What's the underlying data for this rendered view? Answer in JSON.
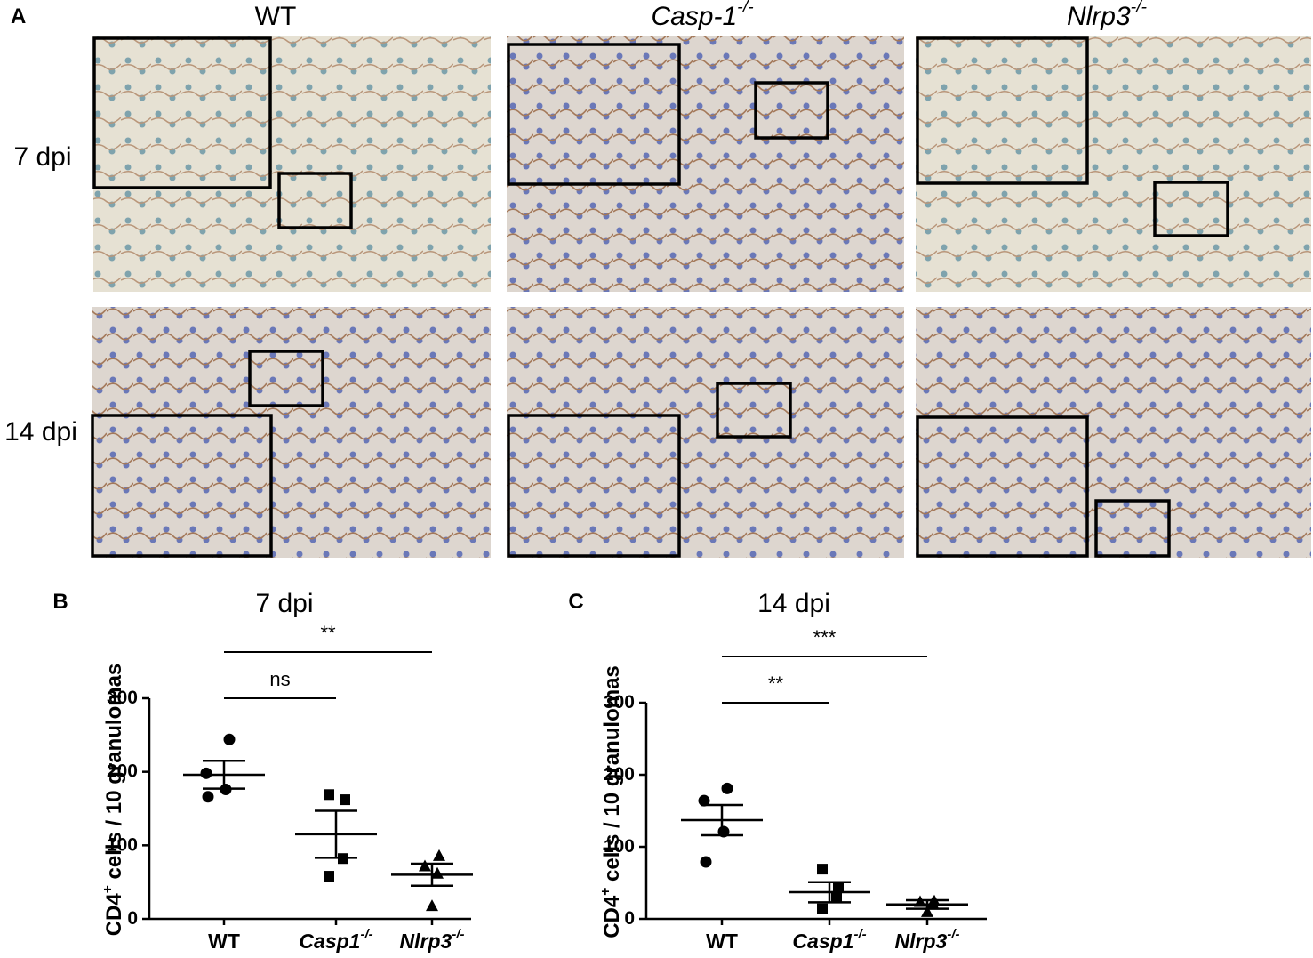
{
  "panel_a": {
    "label": "A",
    "columns": [
      "WT",
      "Casp-1-/-",
      "Nlrp3-/-"
    ],
    "rows": [
      "7 dpi",
      "14 dpi"
    ]
  },
  "chart_data": [
    {
      "type": "dot",
      "panel_label": "B",
      "title": "7 dpi",
      "y_label": "CD4+ cells / 10 granulomas",
      "categories": [
        "WT",
        "Casp1-/-",
        "Nlrp3-/-"
      ],
      "markers": [
        "circle",
        "square",
        "triangle"
      ],
      "points": [
        [
          244,
          198,
          176,
          166
        ],
        [
          169,
          162,
          82,
          58
        ],
        [
          86,
          72,
          62,
          18
        ]
      ],
      "means": [
        196,
        115,
        60
      ],
      "errors": [
        19,
        32,
        15
      ],
      "annotations": [
        "ns",
        "**"
      ],
      "ylim": [
        0,
        300
      ],
      "yticks": [
        0,
        100,
        200,
        300
      ],
      "color": "#000000"
    },
    {
      "type": "dot",
      "panel_label": "C",
      "title": "14 dpi",
      "y_label": "CD4+ cells / 10 granulomas",
      "categories": [
        "WT",
        "Casp1-/-",
        "Nlrp3-/-"
      ],
      "markers": [
        "circle",
        "square",
        "triangle"
      ],
      "points": [
        [
          181,
          164,
          121,
          79
        ],
        [
          69,
          45,
          31,
          14
        ],
        [
          25,
          24,
          22,
          10
        ]
      ],
      "means": [
        137,
        37,
        20
      ],
      "errors": [
        21,
        14,
        6
      ],
      "annotations": [
        "**",
        "***"
      ],
      "ylim": [
        0,
        300
      ],
      "yticks": [
        0,
        100,
        200,
        300
      ],
      "color": "#000000"
    }
  ]
}
